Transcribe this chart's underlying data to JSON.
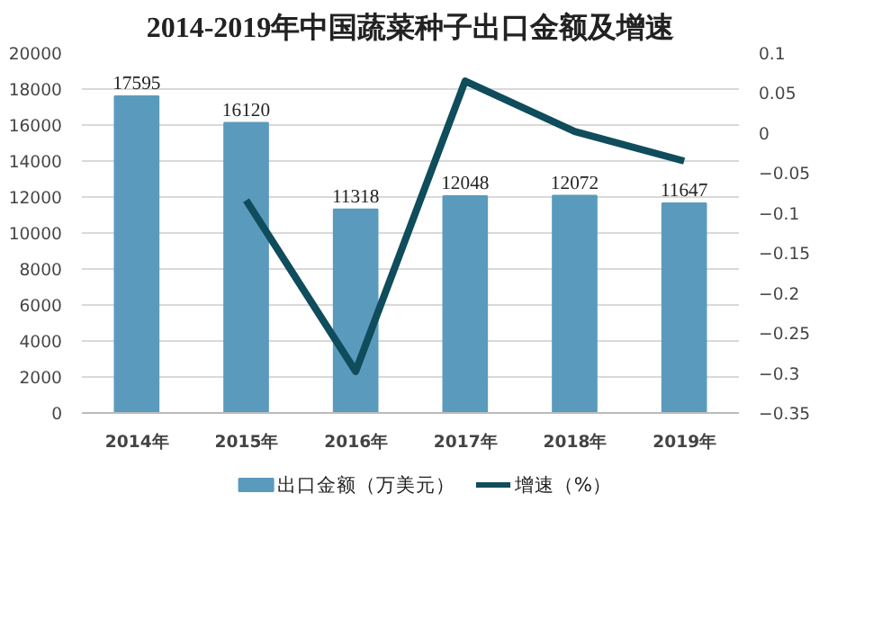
{
  "chart_data": {
    "type": "bar",
    "title": "2014-2019年中国蔬菜种子出口金额及增速",
    "categories": [
      "2014年",
      "2015年",
      "2016年",
      "2017年",
      "2018年",
      "2019年"
    ],
    "series": [
      {
        "name": "出口金额（万美元）",
        "color": "#5a9bbd",
        "values": [
          17595,
          16120,
          11318,
          12048,
          12072,
          11647
        ],
        "value_labels": [
          "17595",
          "16120",
          "11318",
          "12048",
          "12072",
          "11647"
        ]
      },
      {
        "name": "增速（%）",
        "type": "line",
        "axis": "y2",
        "color": "#0f4c5c",
        "values": [
          null,
          -0.084,
          -0.298,
          0.065,
          0.002,
          -0.035
        ]
      }
    ],
    "ylim": [
      0,
      20000
    ],
    "yticks": [
      0,
      2000,
      4000,
      6000,
      8000,
      10000,
      12000,
      14000,
      16000,
      18000,
      20000
    ],
    "y2lim": [
      -0.35,
      0.1
    ],
    "y2ticks": [
      -0.35,
      -0.3,
      -0.25,
      -0.2,
      -0.15,
      -0.1,
      -0.05,
      0,
      0.05,
      0.1
    ],
    "grid": "y",
    "legend": "bottom",
    "marker": "none"
  }
}
